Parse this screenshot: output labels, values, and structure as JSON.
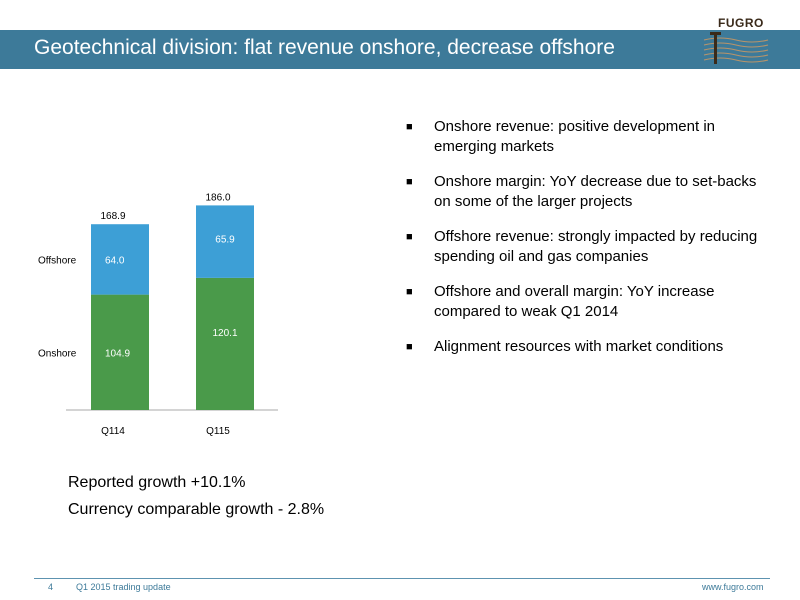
{
  "header": {
    "title": "Geotechnical division: flat revenue onshore, decrease offshore",
    "logo_text": "FUGRO"
  },
  "colors": {
    "title_bar": "#3d7a99",
    "onshore": "#4a9a4a",
    "offshore": "#3d9fd6"
  },
  "chart_data": {
    "type": "bar",
    "stacked": true,
    "categories": [
      "Q114",
      "Q115"
    ],
    "series": [
      {
        "name": "Onshore",
        "values": [
          104.9,
          120.1
        ]
      },
      {
        "name": "Offshore",
        "values": [
          64.0,
          65.9
        ]
      }
    ],
    "value_labels": {
      "Onshore": [
        "104.9",
        "120.1"
      ],
      "Offshore": [
        "64.0",
        "65.9"
      ]
    },
    "totals": [
      "168.9",
      "186.0"
    ],
    "ylim": [
      0,
      200
    ],
    "legend": "left",
    "grid": false
  },
  "bullets": [
    "Onshore revenue: positive development in emerging markets",
    "Onshore margin: YoY decrease due to set-backs on some of the larger projects",
    "Offshore revenue: strongly impacted by reducing spending oil and gas companies",
    "Offshore and overall margin: YoY increase compared to weak Q1 2014",
    "Alignment resources with market conditions"
  ],
  "bullet_symbol": "■",
  "growth": {
    "reported": "Reported growth +10.1%",
    "currency": "Currency comparable growth - 2.8%"
  },
  "footer": {
    "page": "4",
    "subtitle": "Q1 2015 trading update",
    "url": "www.fugro.com"
  }
}
